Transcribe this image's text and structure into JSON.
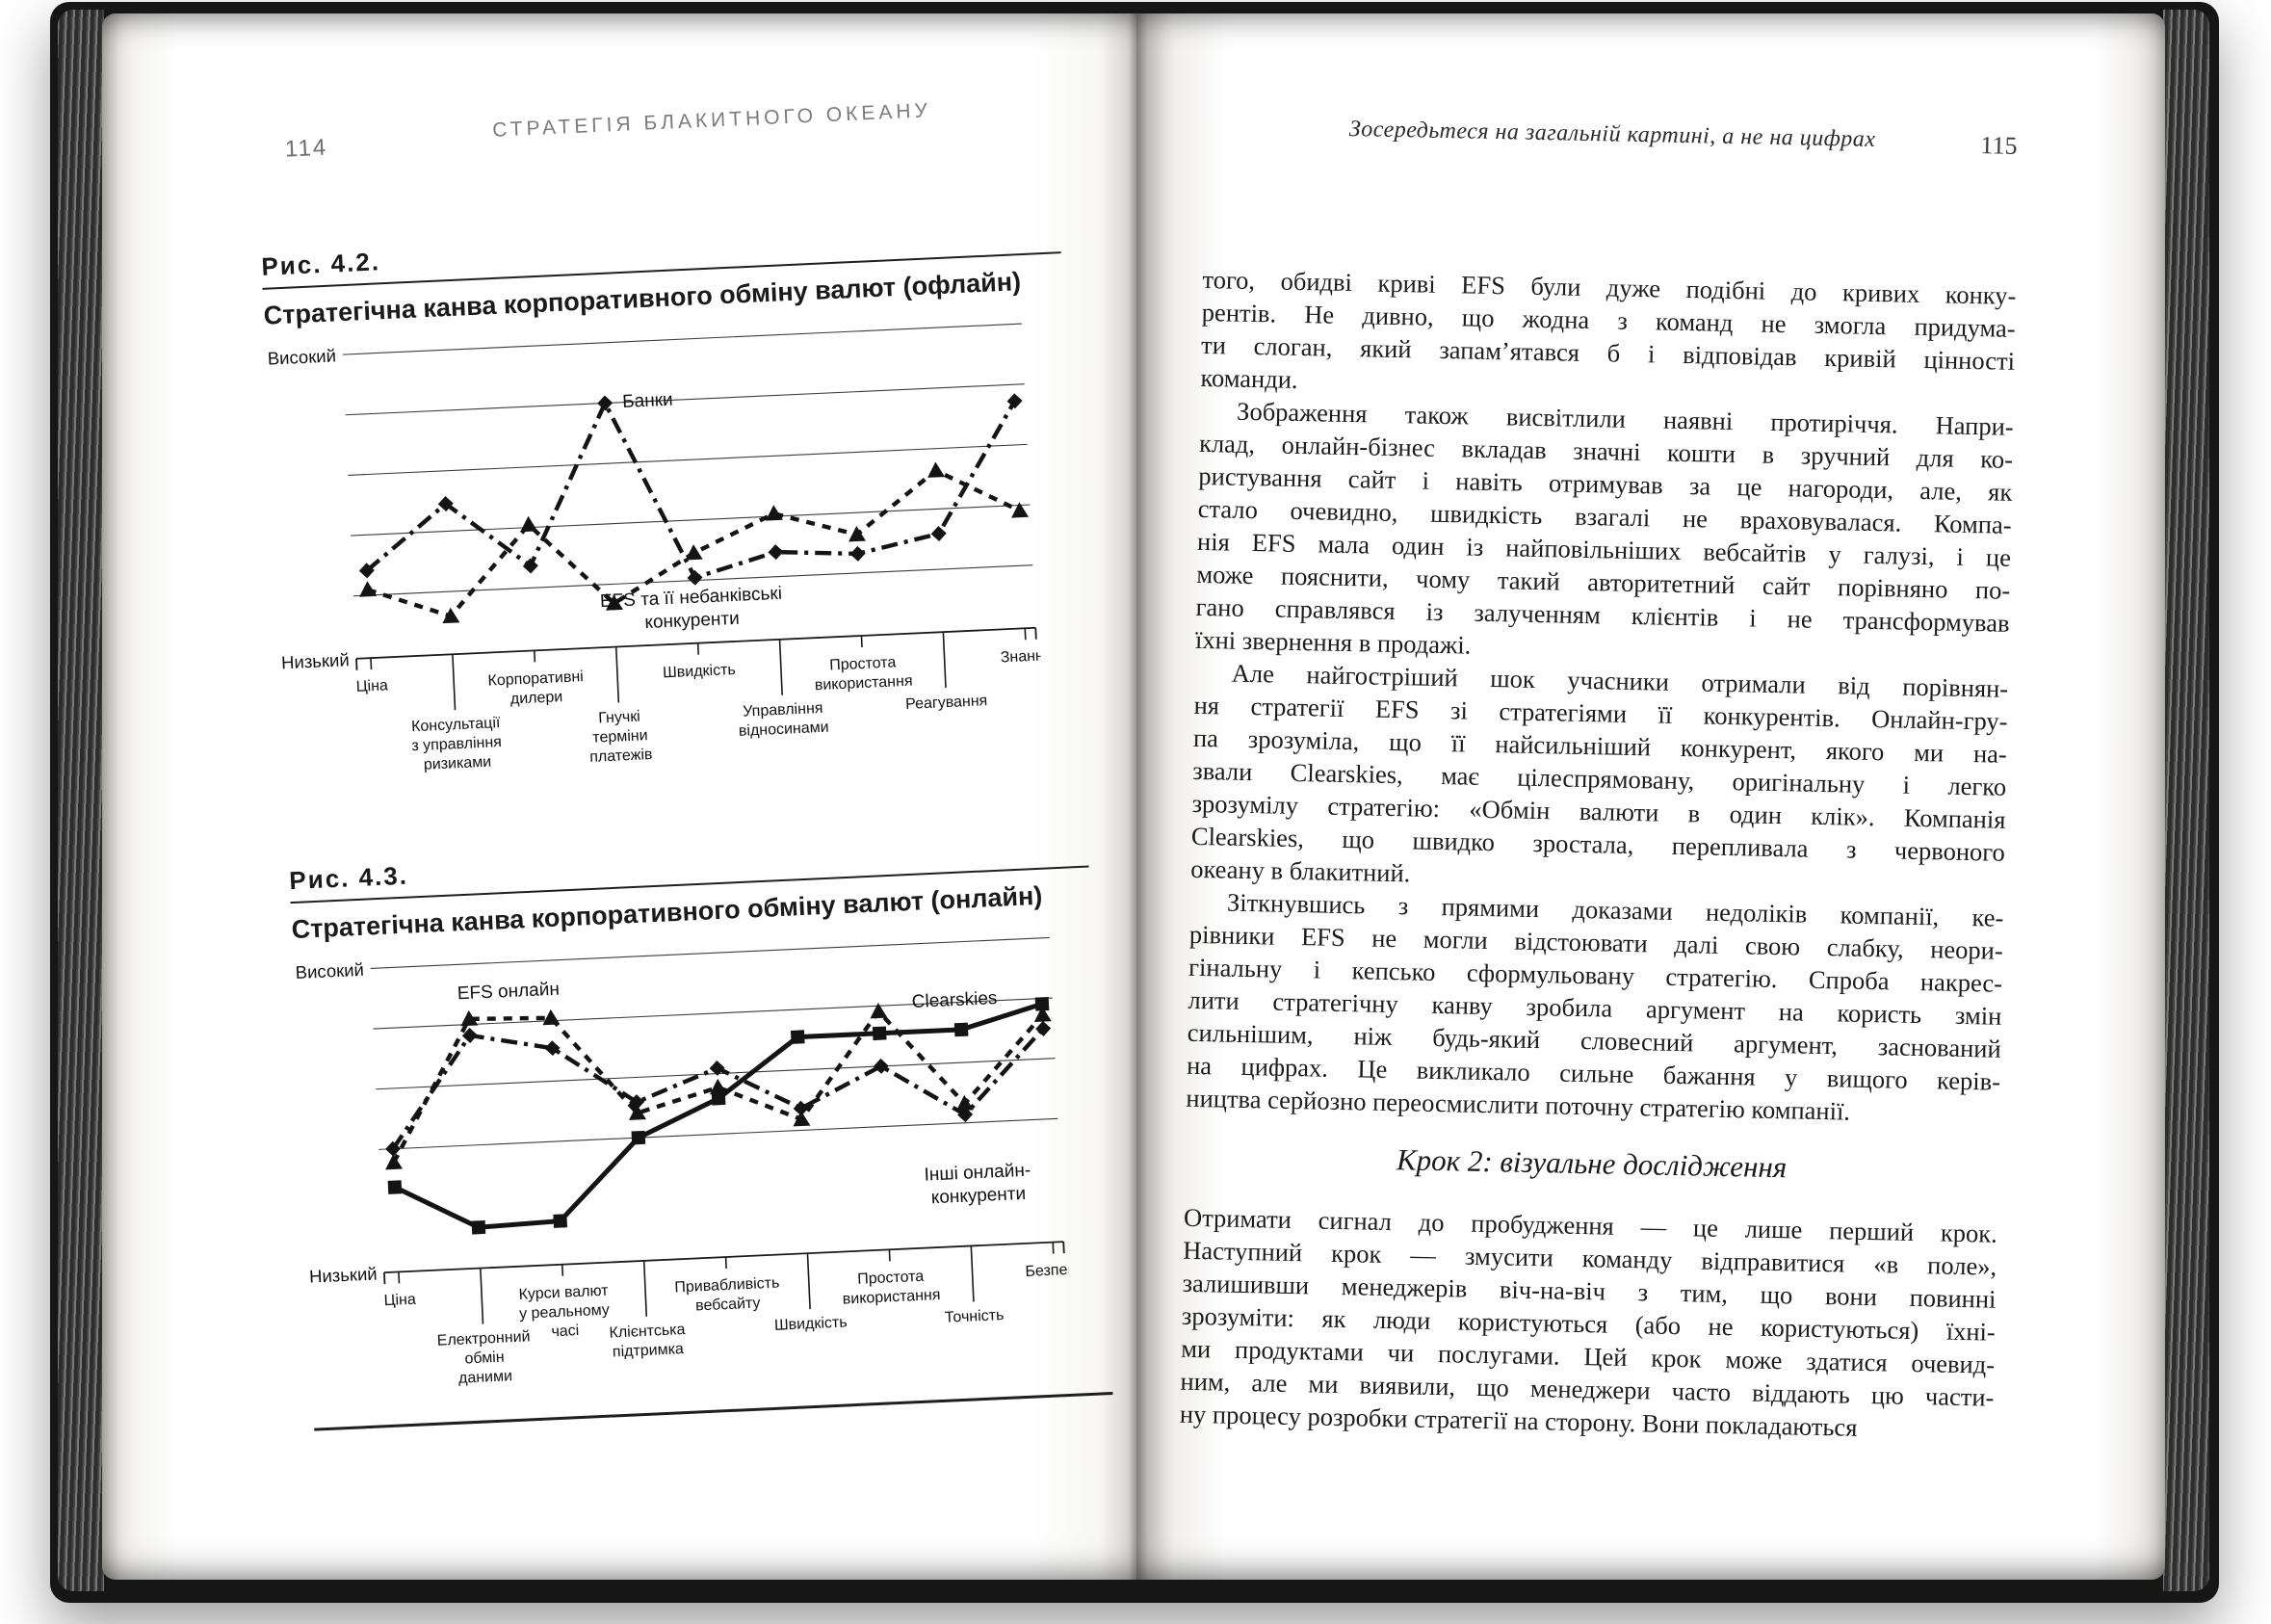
{
  "book": {
    "left_page": {
      "page_number": "114",
      "running_head": "СТРАТЕГІЯ БЛАКИТНОГО ОКЕАНУ"
    },
    "right_page": {
      "page_number": "115",
      "running_head": "Зосередьтеся на загальній картині, а не на цифрах",
      "section_heading": "Крок 2: візуальне дослідження",
      "paragraphs": [
        {
          "indent": false,
          "lines": [
            "того, обидві криві EFS були дуже подібні до кривих конку-",
            "рентів. Не дивно, що жодна з команд не змогла придума-",
            "ти слоган, який запам’ятався б і відповідав кривій цінності",
            "команди."
          ]
        },
        {
          "indent": true,
          "lines": [
            "Зображення також висвітлили наявні протиріччя. Напри-",
            "клад, онлайн-бізнес вкладав значні кошти в зручний для ко-",
            "ристування сайт і навіть отримував за це нагороди, але, як",
            "стало очевидно, швидкість взагалі не враховувалася. Компа-",
            "нія EFS мала один із найповільніших вебсайтів у галузі, і це",
            "може пояснити, чому такий авторитетний сайт порівняно по-",
            "гано справлявся із залученням клієнтів і не трансформував",
            "їхні звернення в продажі."
          ]
        },
        {
          "indent": true,
          "lines": [
            "Але найгостріший шок учасники отримали від порівнян-",
            "ня стратегії EFS зі стратегіями її конкурентів. Онлайн-гру-",
            "па зрозуміла, що її найсильніший конкурент, якого ми на-",
            "звали Clearskies, має цілеспрямовану, оригінальну і легко",
            "зрозумілу стратегію: «Обмін валюти в один клік». Компанія",
            "Clearskies, що швидко зростала, перепливала з червоного",
            "океану в блакитний."
          ]
        },
        {
          "indent": true,
          "lines": [
            "Зіткнувшись з прямими доказами недоліків компанії, ке-",
            "рівники EFS не могли відстоювати далі свою слабку, неори-",
            "гінальну і кепсько сформульовану стратегію. Спроба накрес-",
            "лити стратегічну канву зробила аргумент на користь змін",
            "сильнішим, ніж будь-який словесний аргумент, заснований",
            "на цифрах. Це викликало сильне бажання у вищого керів-",
            "ництва серйозно переосмислити поточну стратегію компанії."
          ]
        },
        {
          "indent": false,
          "after_heading": true,
          "lines": [
            "Отримати сигнал до пробудження — це лише перший крок.",
            "Наступний крок — змусити команду відправитися «в поле»,",
            "залишивши менеджерів віч-на-віч з тим, що вони повинні",
            "зрозуміти: як люди користуються (або не користуються) їхні-",
            "ми продуктами чи послугами. Цей крок може здатися очевид-",
            "ним, але ми виявили, що менеджери часто віддають цю части-",
            "ну процесу розробки стратегії на сторону. Вони покладаються"
          ]
        }
      ]
    }
  },
  "chart_data": [
    {
      "type": "line",
      "figure_label": "Рис. 4.2.",
      "title": "Стратегічна канва корпоративного обміну валют (офлайн)",
      "ylabel_high": "Високий",
      "ylabel_low": "Низький",
      "ylim": [
        0,
        100
      ],
      "grid": true,
      "legend_position": "inline-annotations",
      "categories": [
        "Ціна",
        "Консультації\nз управління\nризиками",
        "Корпоративні\nдилери",
        "Гнучкі\nтерміни\nплатежів",
        "Швидкість",
        "Управління\nвідносинами",
        "Простота\nвикористання",
        "Реагування",
        "Знання"
      ],
      "series": [
        {
          "name": "Банки",
          "label_lines": [
            "Банки"
          ],
          "marker": "diamond",
          "line_style": "dashdot",
          "values": [
            21,
            44,
            20,
            78,
            13,
            21,
            19,
            25,
            72
          ]
        },
        {
          "name": "EFS та її небанківські конкуренти",
          "label_lines": [
            "EFS та її небанківські",
            "конкуренти"
          ],
          "marker": "triangle",
          "line_style": "dashed",
          "values": [
            14,
            3,
            35,
            5,
            22,
            35,
            26,
            48,
            32
          ]
        }
      ]
    },
    {
      "type": "line",
      "figure_label": "Рис. 4.3.",
      "title": "Стратегічна канва корпоративного обміну валют (онлайн)",
      "ylabel_high": "Високий",
      "ylabel_low": "Низький",
      "ylim": [
        0,
        100
      ],
      "grid": true,
      "legend_position": "inline-annotations",
      "categories": [
        "Ціна",
        "Електронний\nобмін\nданими",
        "Курси валют\nу реальному\nчасі",
        "Клієнтська\nпідтримка",
        "Привабливість\nвебсайту",
        "Швидкість",
        "Простота\nвикористання",
        "Точність",
        "Безпека"
      ],
      "series": [
        {
          "name": "EFS онлайн",
          "label_lines": [
            "EFS онлайн"
          ],
          "marker": "triangle",
          "line_style": "dashed",
          "values": [
            29,
            80,
            79,
            43,
            51,
            38,
            76,
            41,
            72
          ]
        },
        {
          "name": "Інші онлайн-конкуренти",
          "label_lines": [
            "Інші онлайн-",
            "конкуренти"
          ],
          "marker": "diamond",
          "line_style": "dashdot",
          "values": [
            34,
            74,
            68,
            47,
            58,
            42,
            56,
            37,
            67
          ]
        },
        {
          "name": "Clearskies",
          "label_lines": [
            "Clearskies"
          ],
          "marker": "square",
          "line_style": "solid",
          "values": [
            20,
            4,
            5,
            34,
            47,
            68,
            68,
            68,
            76
          ]
        }
      ]
    }
  ]
}
